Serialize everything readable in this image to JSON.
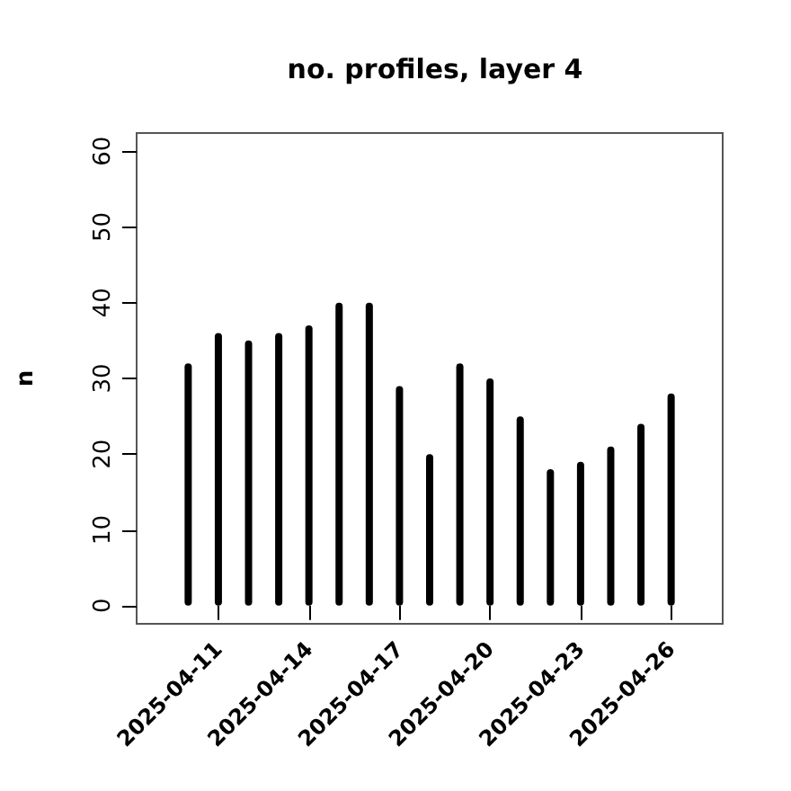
{
  "chart_data": {
    "type": "bar",
    "title": "no. profiles, layer 4",
    "ylabel": "n",
    "x": [
      "2025-04-10",
      "2025-04-11",
      "2025-04-12",
      "2025-04-13",
      "2025-04-14",
      "2025-04-15",
      "2025-04-16",
      "2025-04-17",
      "2025-04-18",
      "2025-04-19",
      "2025-04-20",
      "2025-04-21",
      "2025-04-22",
      "2025-04-23",
      "2025-04-24",
      "2025-04-25",
      "2025-04-26"
    ],
    "values": [
      32,
      36,
      35,
      36,
      37,
      40,
      40,
      29,
      20,
      32,
      30,
      25,
      18,
      19,
      21,
      24,
      28
    ],
    "color": "#000000",
    "xlim": [
      "2025-04-08T07:00",
      "2025-04-27T17:00"
    ],
    "xticks": [
      "2025-04-11",
      "2025-04-14",
      "2025-04-17",
      "2025-04-20",
      "2025-04-23",
      "2025-04-26"
    ],
    "ylim": [
      -2.4,
      62.4
    ],
    "yticks": [
      0,
      10,
      20,
      30,
      40,
      50,
      60
    ],
    "grid": false
  }
}
